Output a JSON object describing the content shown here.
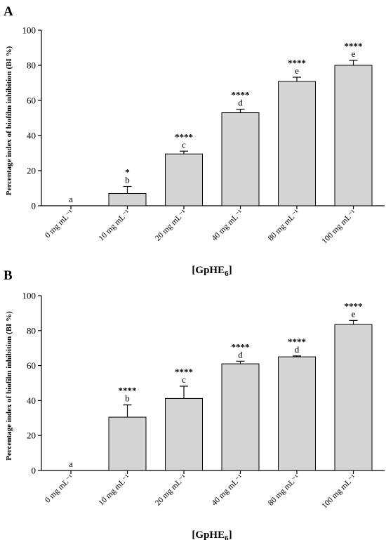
{
  "chart_data": [
    {
      "type": "bar",
      "panel": "A",
      "categories": [
        "0 mg mL⁻¹",
        "10 mg mL⁻¹",
        "20 mg mL⁻¹",
        "40 mg mL⁻¹",
        "80 mg mL⁻¹",
        "100 mg mL⁻¹"
      ],
      "values": [
        0,
        7,
        29.5,
        53,
        70.8,
        80
      ],
      "errors": [
        0,
        4,
        1.6,
        2,
        2.4,
        2.8
      ],
      "significance": [
        "",
        "*",
        "****",
        "****",
        "****",
        "****"
      ],
      "letters": [
        "a",
        "b",
        "c",
        "d",
        "e",
        "e"
      ],
      "ylabel": "Percentage index of biofilm inhibition (BI %)",
      "xlabel": "[GpHE",
      "xlabel_sub": "6",
      "xlabel_end": "]",
      "ylim": [
        0,
        100
      ],
      "yticks": [
        "0",
        "20",
        "40",
        "60",
        "80",
        "100"
      ],
      "grid": false,
      "bar_color": "#d4d4d4"
    },
    {
      "type": "bar",
      "panel": "B",
      "categories": [
        "0 mg mL⁻¹",
        "10 mg mL⁻¹",
        "20 mg mL⁻¹",
        "40 mg mL⁻¹",
        "80 mg mL⁻¹",
        "100 mg mL⁻¹"
      ],
      "values": [
        0,
        30.5,
        41.2,
        61,
        65,
        83.5
      ],
      "errors": [
        0,
        7,
        7,
        1.5,
        0.5,
        2.3
      ],
      "significance": [
        "",
        "****",
        "****",
        "****",
        "****",
        "****"
      ],
      "letters": [
        "a",
        "b",
        "c",
        "d",
        "d",
        "e"
      ],
      "ylabel": "Percentage index of biofilm inhibition (BI %)",
      "xlabel": "[GpHE",
      "xlabel_sub": "6",
      "xlabel_end": "]",
      "ylim": [
        0,
        100
      ],
      "yticks": [
        "0",
        "20",
        "40",
        "60",
        "80",
        "100"
      ],
      "grid": false,
      "bar_color": "#d4d4d4"
    }
  ]
}
